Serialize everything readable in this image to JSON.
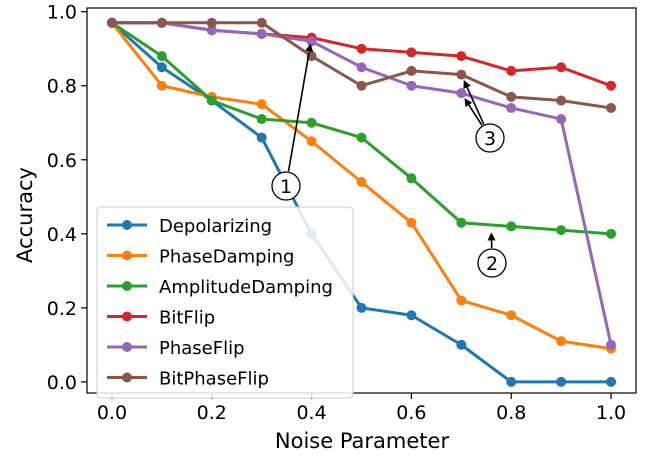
{
  "chart_data": {
    "type": "line",
    "title": "",
    "xlabel": "Noise Parameter",
    "ylabel": "Accuracy",
    "xlim": [
      -0.05,
      1.05
    ],
    "ylim": [
      -0.03,
      1.01
    ],
    "xticks": [
      0.0,
      0.2,
      0.4,
      0.6,
      0.8,
      1.0
    ],
    "xtick_labels": [
      "0.0",
      "0.2",
      "0.4",
      "0.6",
      "0.8",
      "1.0"
    ],
    "yticks": [
      0.0,
      0.2,
      0.4,
      0.6,
      0.8,
      1.0
    ],
    "ytick_labels": [
      "0.0",
      "0.2",
      "0.4",
      "0.6",
      "0.8",
      "1.0"
    ],
    "grid": false,
    "legend_position": "lower-left",
    "x": [
      0.0,
      0.1,
      0.2,
      0.3,
      0.4,
      0.5,
      0.6,
      0.7,
      0.8,
      0.9,
      1.0
    ],
    "series": [
      {
        "name": "Depolarizing",
        "color": "#1f77b4",
        "values": [
          0.97,
          0.85,
          0.76,
          0.66,
          0.4,
          0.2,
          0.18,
          0.1,
          0.0,
          0.0,
          0.0
        ]
      },
      {
        "name": "PhaseDamping",
        "color": "#ff7f0e",
        "values": [
          0.97,
          0.8,
          0.77,
          0.75,
          0.65,
          0.54,
          0.43,
          0.22,
          0.18,
          0.11,
          0.09
        ]
      },
      {
        "name": "AmplitudeDamping",
        "color": "#2ca02c",
        "values": [
          0.97,
          0.88,
          0.76,
          0.71,
          0.7,
          0.66,
          0.55,
          0.43,
          0.42,
          0.41,
          0.4
        ]
      },
      {
        "name": "BitFlip",
        "color": "#d62728",
        "values": [
          0.97,
          0.97,
          0.95,
          0.94,
          0.93,
          0.9,
          0.89,
          0.88,
          0.84,
          0.85,
          0.8
        ]
      },
      {
        "name": "PhaseFlip",
        "color": "#9467bd",
        "values": [
          0.97,
          0.97,
          0.95,
          0.94,
          0.92,
          0.85,
          0.8,
          0.78,
          0.74,
          0.71,
          0.1
        ]
      },
      {
        "name": "BitPhaseFlip",
        "color": "#8c564b",
        "values": [
          0.97,
          0.97,
          0.97,
          0.97,
          0.88,
          0.8,
          0.84,
          0.83,
          0.77,
          0.76,
          0.74
        ]
      }
    ],
    "annotations": [
      {
        "label": "1",
        "arrows_to": [
          [
            0.4,
            0.93
          ]
        ]
      },
      {
        "label": "2",
        "arrows_to": [
          [
            0.76,
            0.42
          ]
        ]
      },
      {
        "label": "3",
        "arrows_to": [
          [
            0.7,
            0.83
          ],
          [
            0.7,
            0.78
          ]
        ]
      }
    ]
  }
}
